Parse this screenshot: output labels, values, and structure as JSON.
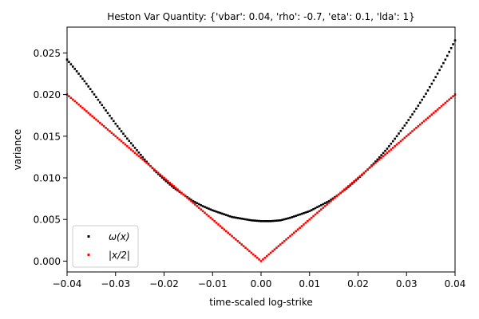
{
  "chart_data": {
    "type": "scatter",
    "title": "Heston Var Quantity: {'vbar': 0.04, 'rho': -0.7, 'eta': 0.1, 'lda': 1}",
    "xlabel": "time-scaled log-strike",
    "ylabel": "variance",
    "xlim": [
      -0.04,
      0.04
    ],
    "ylim": [
      -0.0013,
      0.0281
    ],
    "x_ticks": [
      -0.04,
      -0.03,
      -0.02,
      -0.01,
      0.0,
      0.01,
      0.02,
      0.03,
      0.04
    ],
    "x_tick_labels": [
      "−0.04",
      "−0.03",
      "−0.02",
      "−0.01",
      "0.00",
      "0.01",
      "0.02",
      "0.03",
      "0.04"
    ],
    "y_ticks": [
      0.0,
      0.005,
      0.01,
      0.015,
      0.02,
      0.025
    ],
    "y_tick_labels": [
      "0.000",
      "0.005",
      "0.010",
      "0.015",
      "0.020",
      "0.025"
    ],
    "grid": false,
    "legend_position": "lower-left",
    "series": [
      {
        "name": "ω(x)",
        "color": "#000000",
        "x": [
          -0.04,
          -0.038,
          -0.036,
          -0.034,
          -0.032,
          -0.03,
          -0.028,
          -0.026,
          -0.024,
          -0.022,
          -0.02,
          -0.018,
          -0.016,
          -0.014,
          -0.012,
          -0.01,
          -0.008,
          -0.006,
          -0.004,
          -0.002,
          0.0,
          0.002,
          0.004,
          0.006,
          0.008,
          0.01,
          0.012,
          0.014,
          0.016,
          0.018,
          0.02,
          0.022,
          0.024,
          0.026,
          0.028,
          0.03,
          0.032,
          0.034,
          0.036,
          0.038,
          0.04
        ],
        "values": [
          0.0242,
          0.0228,
          0.0213,
          0.0197,
          0.0181,
          0.0165,
          0.015,
          0.0136,
          0.0122,
          0.0109,
          0.0098,
          0.0088,
          0.008,
          0.0072,
          0.0066,
          0.0061,
          0.0057,
          0.0053,
          0.0051,
          0.0049,
          0.0048,
          0.0048,
          0.0049,
          0.0052,
          0.0056,
          0.006,
          0.0066,
          0.0072,
          0.008,
          0.0089,
          0.0099,
          0.011,
          0.0122,
          0.0135,
          0.015,
          0.0166,
          0.0183,
          0.0201,
          0.0221,
          0.0242,
          0.0265
        ]
      },
      {
        "name": "|x/2|",
        "color": "#ff0000",
        "x": [
          -0.04,
          -0.038,
          -0.036,
          -0.034,
          -0.032,
          -0.03,
          -0.028,
          -0.026,
          -0.024,
          -0.022,
          -0.02,
          -0.018,
          -0.016,
          -0.014,
          -0.012,
          -0.01,
          -0.008,
          -0.006,
          -0.004,
          -0.002,
          0.0,
          0.002,
          0.004,
          0.006,
          0.008,
          0.01,
          0.012,
          0.014,
          0.016,
          0.018,
          0.02,
          0.022,
          0.024,
          0.026,
          0.028,
          0.03,
          0.032,
          0.034,
          0.036,
          0.038,
          0.04
        ],
        "values": [
          0.02,
          0.019,
          0.018,
          0.017,
          0.016,
          0.015,
          0.014,
          0.013,
          0.012,
          0.011,
          0.01,
          0.009,
          0.008,
          0.007,
          0.006,
          0.005,
          0.004,
          0.003,
          0.002,
          0.001,
          0.0,
          0.001,
          0.002,
          0.003,
          0.004,
          0.005,
          0.006,
          0.007,
          0.008,
          0.009,
          0.01,
          0.011,
          0.012,
          0.013,
          0.014,
          0.015,
          0.016,
          0.017,
          0.018,
          0.019,
          0.02
        ]
      }
    ]
  }
}
